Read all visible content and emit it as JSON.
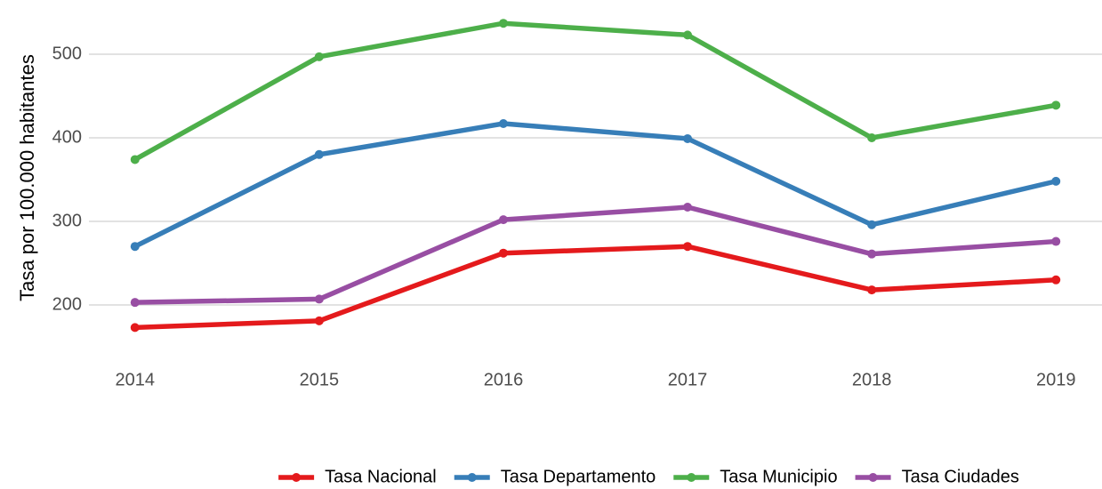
{
  "chart_data": {
    "type": "line",
    "y_label": "Tasa por 100.000 habitantes",
    "x": [
      2014,
      2015,
      2016,
      2017,
      2018,
      2019
    ],
    "series": [
      {
        "name": "Tasa Nacional",
        "color": "#e41a1c",
        "values": [
          173,
          181,
          262,
          270,
          218,
          230
        ]
      },
      {
        "name": "Tasa Departamento",
        "color": "#377eb8",
        "values": [
          270,
          380,
          417,
          399,
          296,
          348
        ]
      },
      {
        "name": "Tasa Municipio",
        "color": "#4daf4a",
        "values": [
          374,
          497,
          537,
          523,
          400,
          439
        ]
      },
      {
        "name": "Tasa Ciudades",
        "color": "#984ea3",
        "values": [
          203,
          207,
          302,
          317,
          261,
          276
        ]
      }
    ],
    "xlim": [
      2013.75,
      2019.25
    ],
    "xticks": [
      2014,
      2015,
      2016,
      2017,
      2018,
      2019
    ],
    "ylim": [
      155,
      550
    ],
    "yticks": [
      200,
      300,
      400,
      500
    ],
    "grid": true,
    "legend": "bottom"
  }
}
